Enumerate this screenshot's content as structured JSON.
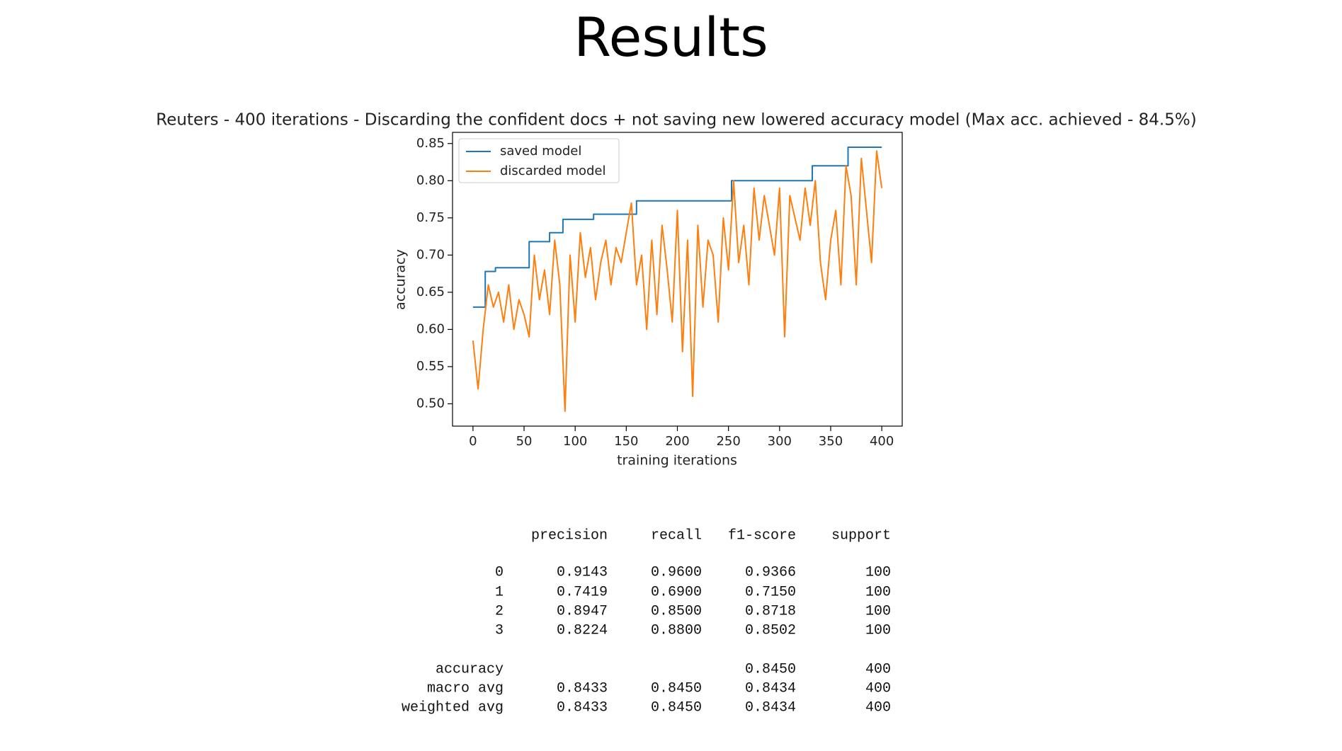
{
  "title": "Results",
  "chart_data": {
    "type": "line",
    "title": "Reuters - 400 iterations - Discarding the confident docs + not saving new lowered accuracy model (Max acc. achieved - 84.5%)",
    "x_label": "training iterations",
    "y_label": "accuracy",
    "xlim": [
      -20,
      420
    ],
    "ylim": [
      0.47,
      0.865
    ],
    "xticks": [
      0,
      50,
      100,
      150,
      200,
      250,
      300,
      350,
      400
    ],
    "yticks": [
      {
        "value": 0.5,
        "label": "0.50"
      },
      0.55,
      {
        "value": 0.6,
        "label": "0.60"
      },
      0.65,
      {
        "value": 0.7,
        "label": "0.70"
      },
      0.75,
      {
        "value": 0.8,
        "label": "0.80"
      },
      0.85
    ],
    "legend": "upper left",
    "series": [
      {
        "name": "saved model",
        "color": "#1f77b4",
        "x": [
          0,
          12,
          12,
          22,
          22,
          55,
          55,
          75,
          75,
          88,
          88,
          118,
          118,
          160,
          160,
          253,
          253,
          332,
          332,
          367,
          367,
          400
        ],
        "values": [
          0.63,
          0.63,
          0.678,
          0.678,
          0.683,
          0.683,
          0.718,
          0.718,
          0.73,
          0.73,
          0.748,
          0.748,
          0.755,
          0.755,
          0.773,
          0.773,
          0.8,
          0.8,
          0.82,
          0.82,
          0.845,
          0.845
        ]
      },
      {
        "name": "discarded model",
        "color": "#ff7f0e",
        "x": [
          0,
          5,
          10,
          15,
          20,
          25,
          30,
          35,
          40,
          45,
          50,
          55,
          60,
          65,
          70,
          75,
          80,
          85,
          90,
          95,
          100,
          105,
          110,
          115,
          120,
          125,
          130,
          135,
          140,
          145,
          150,
          155,
          160,
          165,
          170,
          175,
          180,
          185,
          190,
          195,
          200,
          205,
          210,
          215,
          220,
          225,
          230,
          235,
          240,
          245,
          250,
          255,
          260,
          265,
          270,
          275,
          280,
          285,
          290,
          295,
          300,
          305,
          310,
          315,
          320,
          325,
          330,
          335,
          340,
          345,
          350,
          355,
          360,
          365,
          370,
          375,
          380,
          385,
          390,
          395,
          400
        ],
        "values": [
          0.585,
          0.52,
          0.6,
          0.66,
          0.63,
          0.65,
          0.61,
          0.66,
          0.6,
          0.64,
          0.62,
          0.59,
          0.7,
          0.64,
          0.68,
          0.62,
          0.72,
          0.66,
          0.49,
          0.7,
          0.61,
          0.73,
          0.67,
          0.71,
          0.64,
          0.69,
          0.72,
          0.66,
          0.71,
          0.69,
          0.73,
          0.77,
          0.66,
          0.7,
          0.6,
          0.72,
          0.62,
          0.74,
          0.68,
          0.61,
          0.76,
          0.57,
          0.72,
          0.51,
          0.74,
          0.63,
          0.72,
          0.7,
          0.61,
          0.75,
          0.68,
          0.8,
          0.69,
          0.74,
          0.66,
          0.79,
          0.72,
          0.78,
          0.74,
          0.7,
          0.79,
          0.59,
          0.78,
          0.75,
          0.72,
          0.79,
          0.74,
          0.8,
          0.69,
          0.64,
          0.72,
          0.76,
          0.66,
          0.82,
          0.78,
          0.66,
          0.83,
          0.76,
          0.69,
          0.84,
          0.79
        ]
      }
    ]
  },
  "report": {
    "columns": [
      "precision",
      "recall",
      "f1-score",
      "support"
    ],
    "rows": [
      [
        "0",
        "0.9143",
        "0.9600",
        "0.9366",
        "100"
      ],
      [
        "1",
        "0.7419",
        "0.6900",
        "0.7150",
        "100"
      ],
      [
        "2",
        "0.8947",
        "0.8500",
        "0.8718",
        "100"
      ],
      [
        "3",
        "0.8224",
        "0.8800",
        "0.8502",
        "100"
      ],
      [
        "accuracy",
        null,
        null,
        "0.8450",
        "400"
      ],
      [
        "macro avg",
        "0.8433",
        "0.8450",
        "0.8434",
        "400"
      ],
      [
        "weighted avg",
        "0.8433",
        "0.8450",
        "0.8434",
        "400"
      ]
    ]
  }
}
